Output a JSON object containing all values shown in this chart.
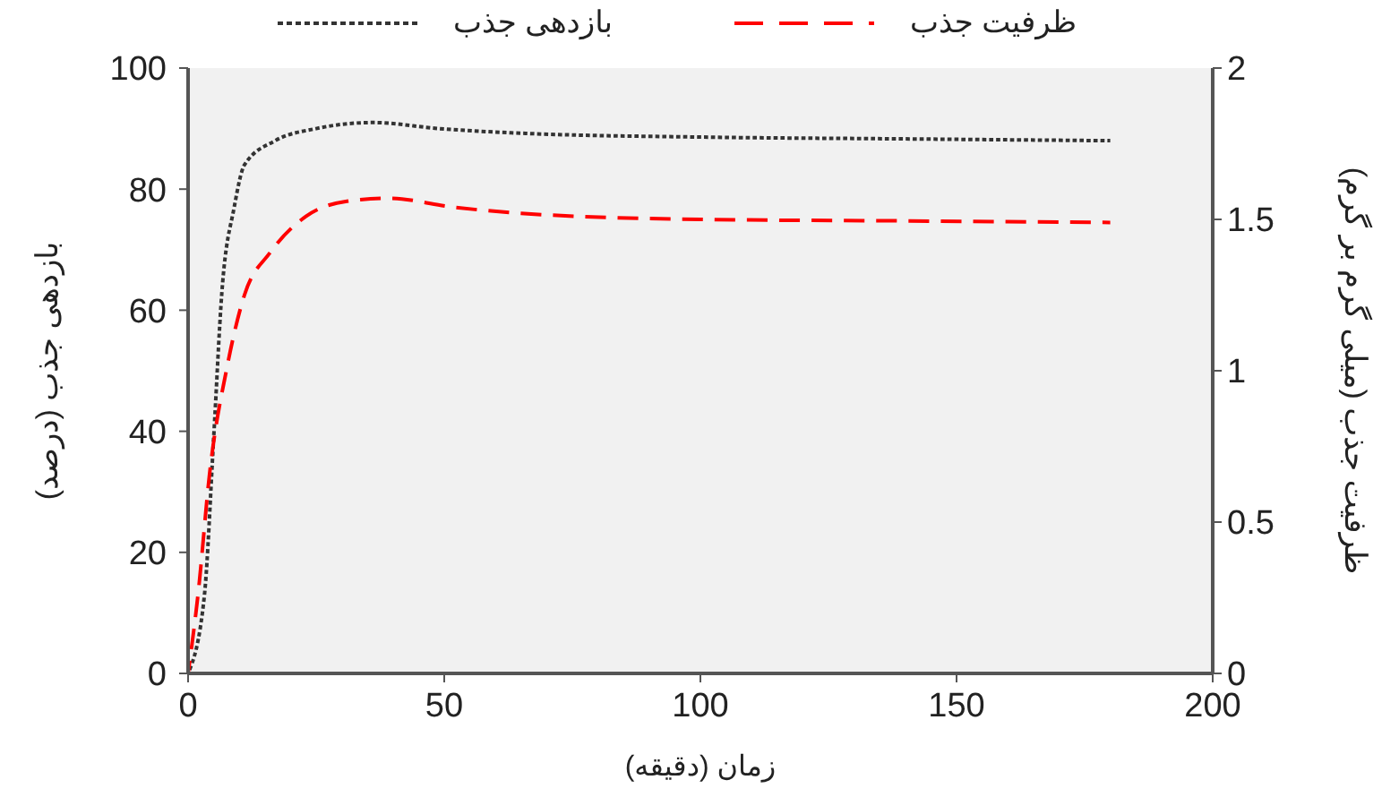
{
  "chart_data": {
    "type": "line",
    "xlabel": "زمان (دقیقه)",
    "ylabel": "بازدهی جذب (درصد)",
    "y2label": "ظرفیت جذب (میلی گرم بر گرم)",
    "xlim": [
      0,
      200
    ],
    "xticks": [
      0,
      50,
      100,
      150,
      200
    ],
    "ylim": [
      0,
      100
    ],
    "yticks": [
      0,
      20,
      40,
      60,
      80,
      100
    ],
    "y2lim": [
      0,
      2
    ],
    "y2ticks": [
      0,
      0.5,
      1,
      1.5,
      2
    ],
    "legend": "top",
    "grid": false,
    "series": [
      {
        "name": "بازدهی جذب",
        "color": "#333333",
        "line_style": "dotted",
        "x": [
          0,
          3.2,
          5,
          6.6,
          9,
          11,
          17,
          25,
          36,
          49,
          66,
          100,
          140,
          180
        ],
        "values": [
          0,
          13,
          39,
          63,
          77,
          84,
          88,
          90,
          91,
          90,
          89.2,
          88.6,
          88.3,
          88
        ]
      },
      {
        "name": "ظرفیت جذب",
        "color": "#ff0000",
        "line_style": "dashed",
        "axis": "y2",
        "x": [
          0,
          2,
          4.2,
          7.7,
          11,
          16,
          23,
          31,
          39,
          52,
          65,
          100,
          140,
          180
        ],
        "values": [
          0,
          0.27,
          0.66,
          1.02,
          1.25,
          1.39,
          1.51,
          1.56,
          1.57,
          1.54,
          1.52,
          1.5,
          1.495,
          1.49
        ]
      }
    ]
  }
}
